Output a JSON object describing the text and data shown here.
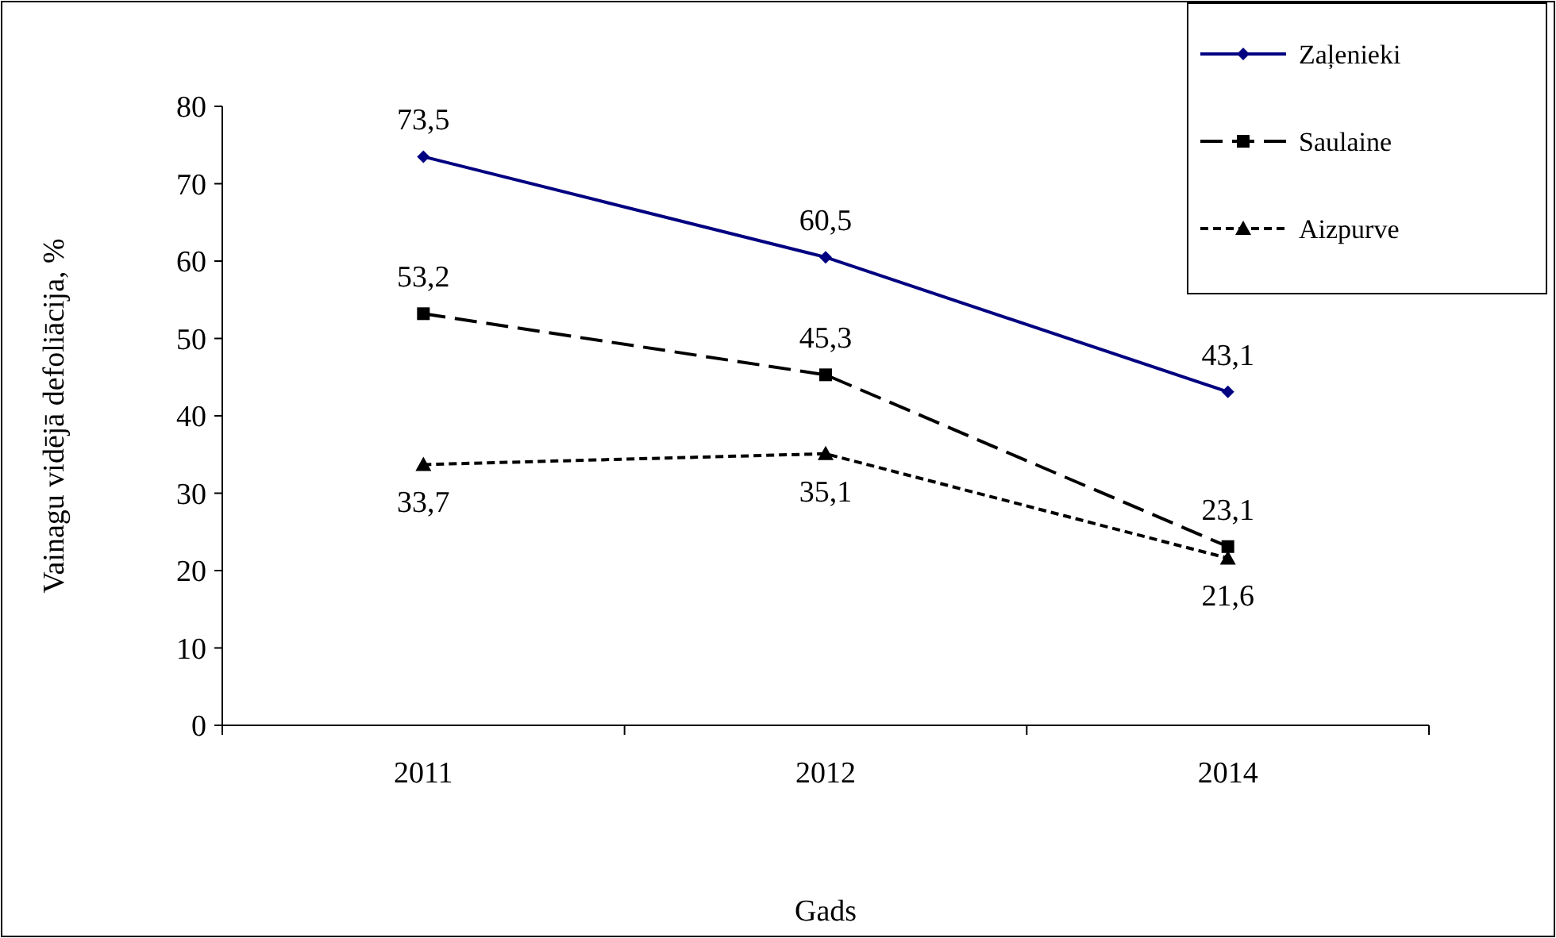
{
  "chart_data": {
    "type": "line",
    "xlabel": "Gads",
    "ylabel": "Vainagu vidējā defoliācija, %",
    "categories": [
      "2011",
      "2012",
      "2014"
    ],
    "series": [
      {
        "name": "Zaļenieki",
        "color": "#000080",
        "values": [
          73.5,
          60.5,
          43.1
        ],
        "value_labels": [
          "73,5",
          "60,5",
          "43,1"
        ],
        "marker": "diamond",
        "line_style": "solid"
      },
      {
        "name": "Saulaine",
        "color": "#000000",
        "values": [
          53.2,
          45.3,
          23.1
        ],
        "value_labels": [
          "53,2",
          "45,3",
          "23,1"
        ],
        "marker": "square",
        "line_style": "dashed"
      },
      {
        "name": "Aizpurve",
        "color": "#000000",
        "values": [
          33.7,
          35.1,
          21.6
        ],
        "value_labels": [
          "33,7",
          "35,1",
          "21,6"
        ],
        "marker": "triangle",
        "line_style": "dotted"
      }
    ],
    "ylim": [
      0,
      80
    ],
    "yticks": [
      0,
      10,
      20,
      30,
      40,
      50,
      60,
      70,
      80
    ],
    "grid": false,
    "legend": "top right"
  }
}
